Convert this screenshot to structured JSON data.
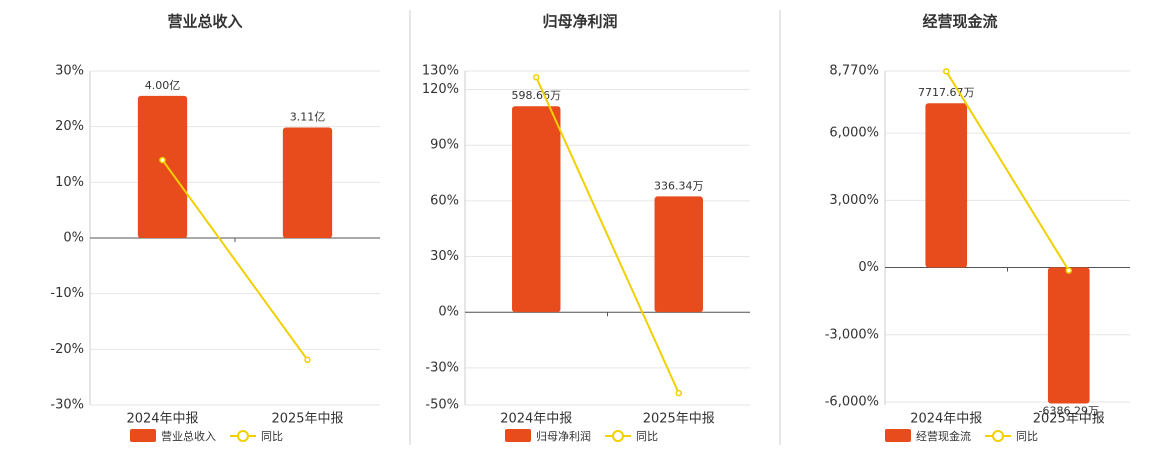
{
  "chart_data": [
    {
      "type": "bar",
      "title": "营业总收入",
      "categories": [
        "2024年中报",
        "2025年中报"
      ],
      "series": [
        {
          "name": "营业总收入",
          "type": "bar",
          "axis": "y2",
          "color": "#e84c1c",
          "values": [
            4.0,
            3.11
          ],
          "value_labels": [
            "4.00亿",
            "3.11亿"
          ]
        },
        {
          "name": "同比",
          "type": "line",
          "color": "#f0d000",
          "values": [
            14.0,
            -21.9
          ]
        }
      ],
      "ylim": [
        -30,
        30
      ],
      "yticks": [
        {
          "value": -30,
          "label": "-30%"
        },
        {
          "value": -20,
          "label": "-20%"
        },
        {
          "value": -10,
          "label": "-10%"
        },
        {
          "value": 0,
          "label": "0%"
        },
        {
          "value": 10,
          "label": "10%"
        },
        {
          "value": 20,
          "label": "20%"
        },
        {
          "value": 30,
          "label": "30%"
        }
      ],
      "y2lim": [
        -4.7,
        4.7
      ],
      "grid": true
    },
    {
      "type": "bar",
      "title": "归母净利润",
      "categories": [
        "2024年中报",
        "2025年中报"
      ],
      "series": [
        {
          "name": "归母净利润",
          "type": "bar",
          "axis": "y2",
          "color": "#e84c1c",
          "values": [
            598.66,
            336.34
          ],
          "value_labels": [
            "598.66万",
            "336.34万"
          ]
        },
        {
          "name": "同比",
          "type": "line",
          "color": "#f0d000",
          "values": [
            126.6,
            -43.6
          ]
        }
      ],
      "ylim": [
        -50,
        130
      ],
      "yticks": [
        {
          "value": -50,
          "label": "-50%"
        },
        {
          "value": -30,
          "label": "-30%"
        },
        {
          "value": 0,
          "label": "0%"
        },
        {
          "value": 30,
          "label": "30%"
        },
        {
          "value": 60,
          "label": "60%"
        },
        {
          "value": 90,
          "label": "90%"
        },
        {
          "value": 120,
          "label": "120%"
        },
        {
          "value": 130,
          "label": "130%"
        }
      ],
      "y2lim": [
        -270,
        701
      ],
      "grid": true
    },
    {
      "type": "bar",
      "title": "经营现金流",
      "categories": [
        "2024年中报",
        "2025年中报"
      ],
      "series": [
        {
          "name": "经营现金流",
          "type": "bar",
          "axis": "y2",
          "color": "#e84c1c",
          "values": [
            7717.67,
            -6386.29
          ],
          "value_labels": [
            "7717.67万",
            "-6386.29万"
          ]
        },
        {
          "name": "同比",
          "type": "line",
          "color": "#f0d000",
          "values": [
            8756,
            -133
          ]
        }
      ],
      "ylim": [
        -6133,
        8770
      ],
      "yticks": [
        {
          "value": -6000,
          "label": "-6,000%"
        },
        {
          "value": -3000,
          "label": "-3,000%"
        },
        {
          "value": 0,
          "label": "0%"
        },
        {
          "value": 3000,
          "label": "3,000%"
        },
        {
          "value": 6000,
          "label": "6,000%"
        },
        {
          "value": 8770,
          "label": "8,770%"
        }
      ],
      "y2lim": [
        -6456,
        9232
      ],
      "grid": true
    }
  ]
}
